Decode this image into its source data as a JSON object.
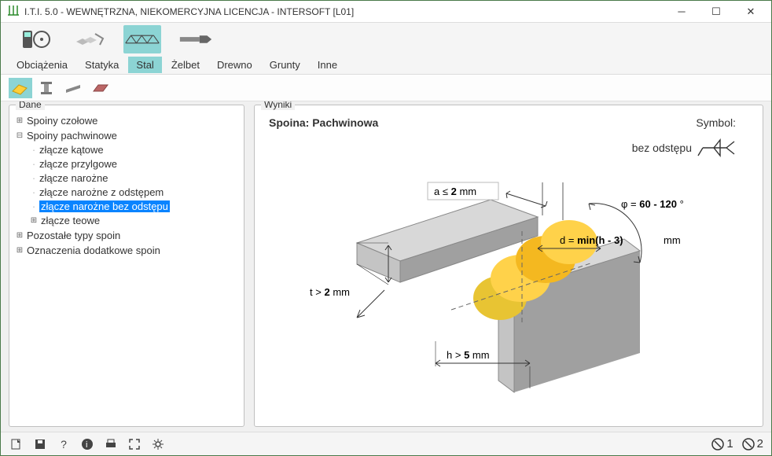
{
  "window": {
    "title": "I.T.I. 5.0 - WEWNĘTRZNA, NIEKOMERCYJNA LICENCJA - INTERSOFT [L01]"
  },
  "tabs": {
    "items": [
      "Obciążenia",
      "Statyka",
      "Stal",
      "Żelbet",
      "Drewno",
      "Grunty",
      "Inne"
    ],
    "active_index": 2
  },
  "tree": {
    "title": "Dane",
    "root": [
      {
        "label": "Spoiny czołowe",
        "expand": "+"
      },
      {
        "label": "Spoiny pachwinowe",
        "expand": "-",
        "children": [
          {
            "label": "złącze kątowe"
          },
          {
            "label": "złącze przylgowe"
          },
          {
            "label": "złącze narożne"
          },
          {
            "label": "złącze narożne z odstępem"
          },
          {
            "label": "złącze narożne bez odstępu",
            "selected": true
          },
          {
            "label": "złącze teowe",
            "expand": "+"
          }
        ]
      },
      {
        "label": "Pozostałe typy spoin",
        "expand": "+"
      },
      {
        "label": "Oznaczenia dodatkowe spoin",
        "expand": "+"
      }
    ]
  },
  "result": {
    "title": "Wyniki",
    "header": "Spoina: Pachwinowa",
    "symbol_label": "Symbol:",
    "symbol_sub": "bez odstępu",
    "diagram": {
      "a_label": "a ≤",
      "a_val": "2",
      "a_unit": "mm",
      "phi_label": "φ  =",
      "phi_val": "60 - 120",
      "phi_unit": "°",
      "d_label": "d  =",
      "d_val": "min(h - 3)",
      "d_unit": "mm",
      "t_label": "t  >",
      "t_val": "2",
      "t_unit": "mm",
      "h_label": "h  >",
      "h_val": "5",
      "h_unit": "mm",
      "colors": {
        "plate_top": "#d8d8d8",
        "plate_side": "#a0a0a0",
        "plate_front": "#c4c4c4",
        "weld_light": "#ffd24a",
        "weld_dark": "#e6b020"
      }
    }
  },
  "status": {
    "right1": "1",
    "right2": "2"
  }
}
